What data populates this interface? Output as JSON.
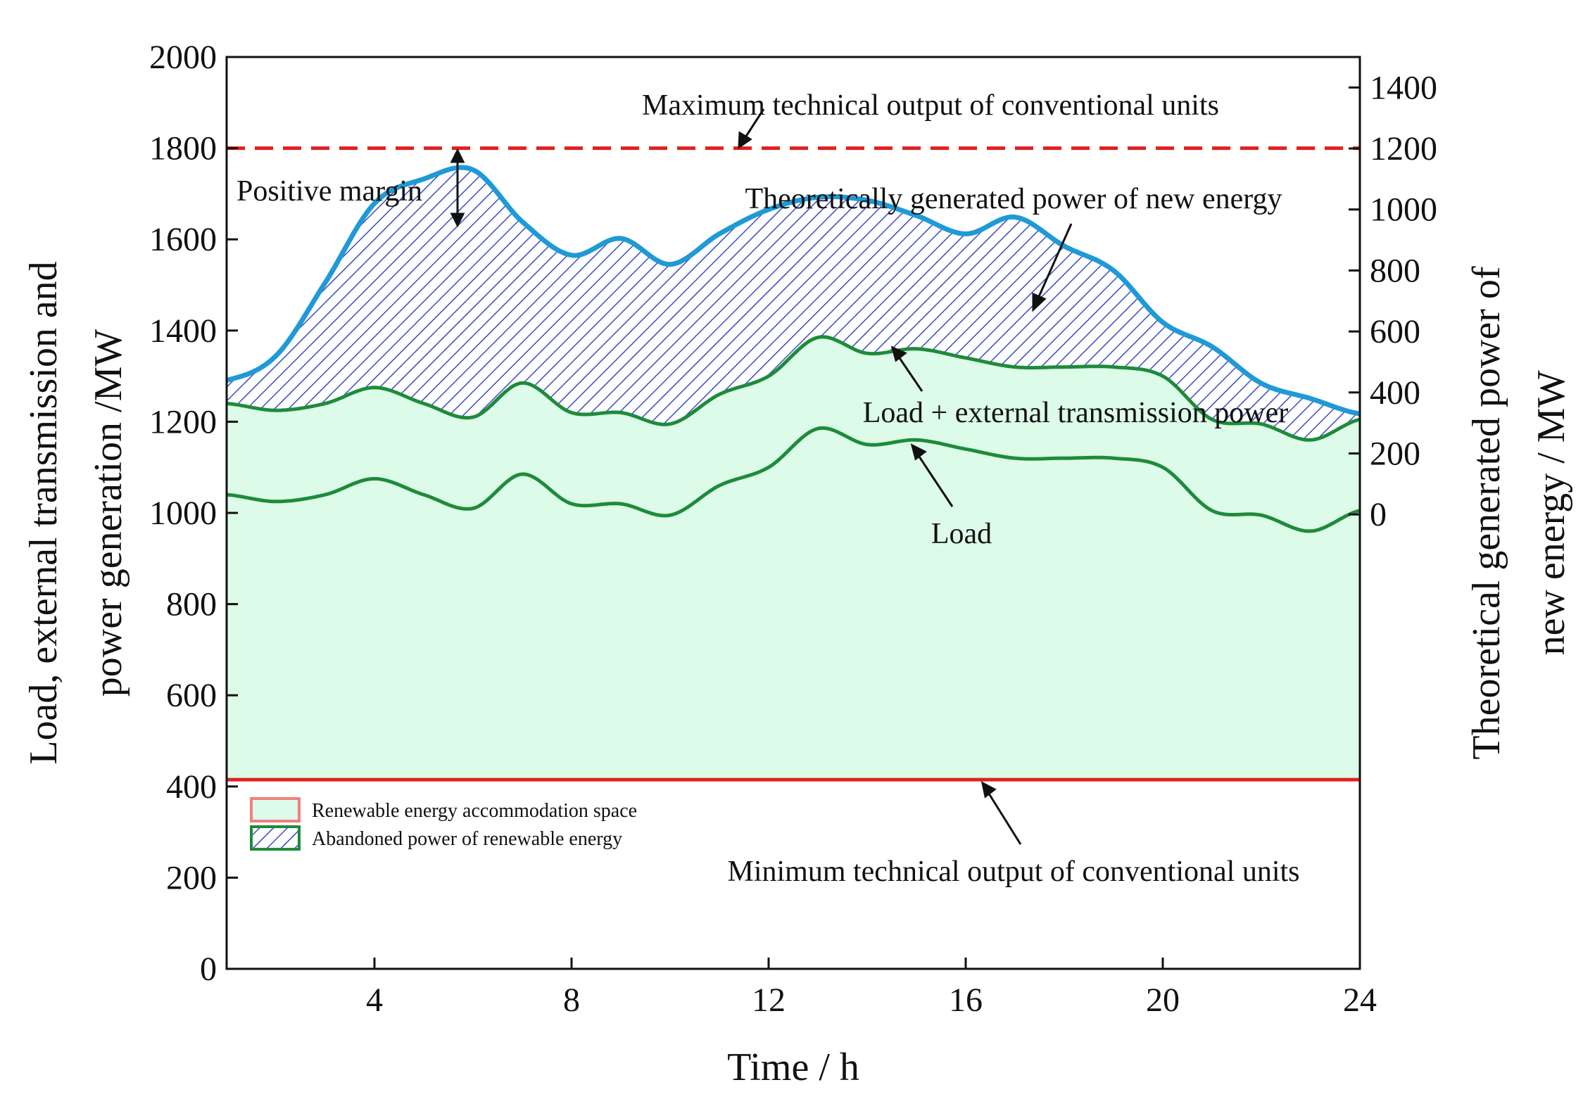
{
  "chart_data": {
    "type": "line",
    "title": "",
    "xlabel": "Time / h",
    "ylabel_left_line1": "Load, external transmission and",
    "ylabel_left_line2": "power generation  /MW",
    "ylabel_right_line1": "Theoretical generated power of",
    "ylabel_right_line2": "new energy / MW",
    "xlim": [
      1,
      24
    ],
    "ylim_left": [
      0,
      2000
    ],
    "ylim_right": [
      -1490,
      1500
    ],
    "x_ticks": [
      4,
      8,
      12,
      16,
      20,
      24
    ],
    "y_left_ticks": [
      0,
      200,
      400,
      600,
      800,
      1000,
      1200,
      1400,
      1600,
      1800,
      2000
    ],
    "y_right_ticks": [
      0,
      200,
      400,
      600,
      800,
      1000,
      1200,
      1400
    ],
    "max_technical_output": 1800,
    "min_technical_output": 415,
    "series": [
      {
        "name": "Load + external transmission power",
        "axis": "left",
        "color": "#1e8b3a",
        "x": [
          1,
          2,
          3,
          4,
          5,
          6,
          7,
          8,
          9,
          10,
          11,
          12,
          13,
          14,
          15,
          16,
          17,
          18,
          19,
          20,
          21,
          22,
          23,
          24
        ],
        "values": [
          1240,
          1225,
          1240,
          1275,
          1240,
          1210,
          1285,
          1220,
          1220,
          1195,
          1260,
          1300,
          1385,
          1350,
          1360,
          1340,
          1320,
          1320,
          1320,
          1300,
          1205,
          1195,
          1160,
          1205
        ]
      },
      {
        "name": "Load",
        "axis": "left",
        "color": "#1e8b3a",
        "x": [
          1,
          2,
          3,
          4,
          5,
          6,
          7,
          8,
          9,
          10,
          11,
          12,
          13,
          14,
          15,
          16,
          17,
          18,
          19,
          20,
          21,
          22,
          23,
          24
        ],
        "values": [
          1040,
          1025,
          1040,
          1075,
          1040,
          1010,
          1085,
          1020,
          1020,
          995,
          1060,
          1100,
          1185,
          1150,
          1160,
          1140,
          1120,
          1120,
          1120,
          1100,
          1005,
          995,
          960,
          1005
        ]
      },
      {
        "name": "Theoretically generated power of new energy",
        "axis": "right",
        "color": "#1f9ad6",
        "x": [
          1,
          2,
          3,
          4,
          5,
          6,
          7,
          8,
          9,
          10,
          11,
          12,
          13,
          14,
          15,
          16,
          17,
          18,
          19,
          20,
          21,
          22,
          23,
          24
        ],
        "values": [
          440,
          520,
          760,
          1020,
          1100,
          1130,
          960,
          850,
          905,
          820,
          920,
          1000,
          1040,
          1030,
          980,
          920,
          975,
          880,
          800,
          630,
          550,
          430,
          380,
          330
        ]
      }
    ],
    "annotations": {
      "max_output": "Maximum technical output of conventional units",
      "min_output": "Minimum technical output of conventional units",
      "positive_margin": "Positive margin",
      "new_energy": "Theoretically generated power of new energy",
      "load_ext": "Load + external transmission power",
      "load": "Load"
    },
    "legend": {
      "position": "bottom-left",
      "items": [
        "Renewable energy accommodation space",
        "Abandoned power of renewable energy"
      ]
    },
    "colors": {
      "accommodation_fill": "#dcfbe8",
      "abandoned_hatch": "#3b4bc8",
      "threshold_red": "#e02020",
      "load_green": "#1e8b3a",
      "new_energy_blue": "#1f9ad6"
    }
  }
}
